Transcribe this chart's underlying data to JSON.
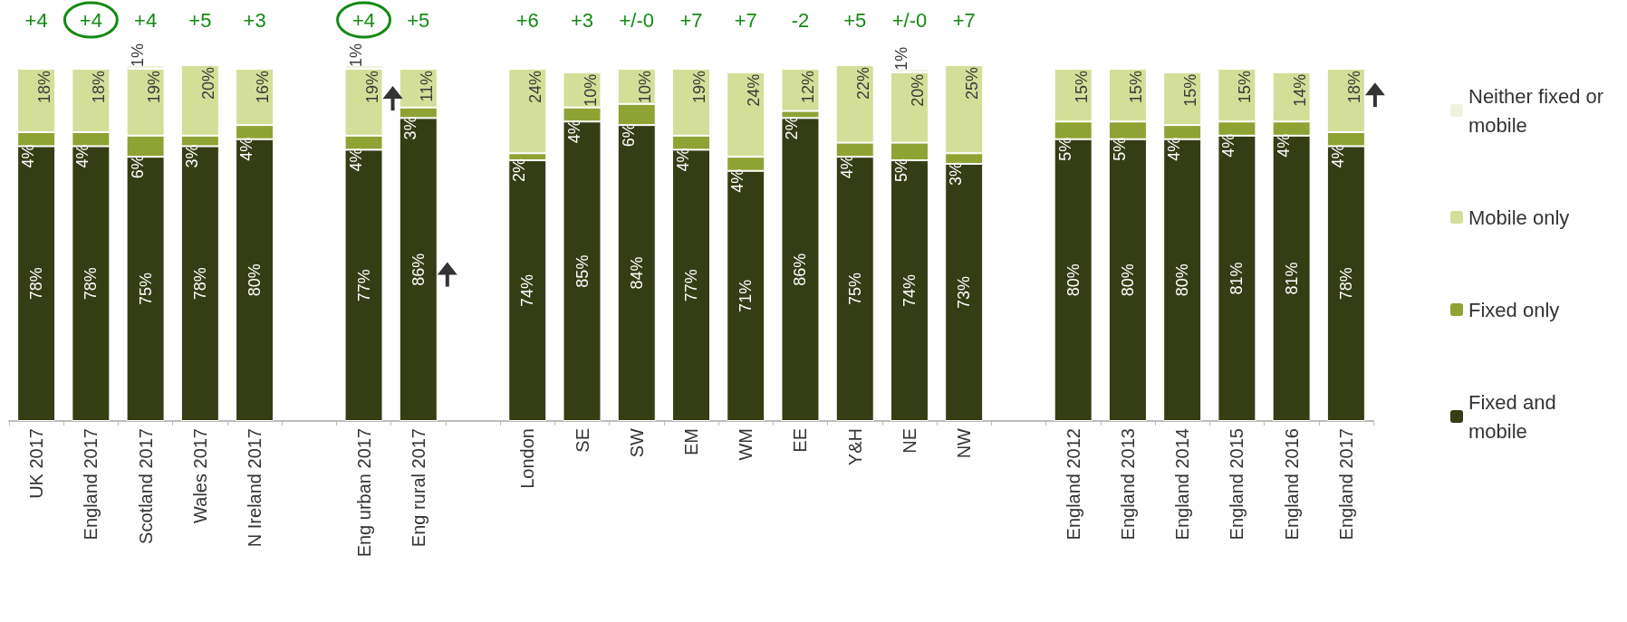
{
  "chart_data": {
    "type": "bar",
    "stacked": true,
    "data_labels": true,
    "legend": "right",
    "categories": [
      "UK 2017",
      "England 2017",
      "Scotland 2017",
      "Wales 2017",
      "N Ireland 2017",
      null,
      "Eng urban 2017",
      "Eng rural 2017",
      null,
      "London",
      "SE",
      "SW",
      "EM",
      "WM",
      "EE",
      "Y&H",
      "NE",
      "NW",
      null,
      "England 2012",
      "England 2013",
      "England 2014",
      "England 2015",
      "England 2016",
      "England 2017"
    ],
    "series": [
      {
        "name": "Fixed and mobile",
        "color": "#353d14",
        "values": [
          78,
          78,
          75,
          78,
          80,
          null,
          77,
          86,
          null,
          74,
          85,
          84,
          77,
          71,
          86,
          75,
          74,
          73,
          null,
          80,
          80,
          80,
          81,
          81,
          78
        ],
        "value_labels": [
          "78%",
          "78%",
          "75%",
          "78%",
          "80%",
          null,
          "77%",
          "86%",
          null,
          "74%",
          "85%",
          "84%",
          "77%",
          "71%",
          "86%",
          "75%",
          "74%",
          "73%",
          null,
          "80%",
          "80%",
          "80%",
          "81%",
          "81%",
          "78%"
        ]
      },
      {
        "name": "Fixed only",
        "color": "#8ea333",
        "values": [
          4,
          4,
          6,
          3,
          4,
          null,
          4,
          3,
          null,
          2,
          4,
          6,
          4,
          4,
          2,
          4,
          5,
          3,
          null,
          5,
          5,
          4,
          4,
          4,
          4
        ],
        "value_labels": [
          "4%",
          "4%",
          "6%",
          "3%",
          "4%",
          null,
          "4%",
          "3%",
          null,
          "2%",
          "4%",
          "6%",
          "4%",
          "4%",
          "2%",
          "4%",
          "5%",
          "3%",
          null,
          "5%",
          "5%",
          "4%",
          "4%",
          "4%",
          "4%"
        ]
      },
      {
        "name": "Mobile only",
        "color": "#d3df98",
        "values": [
          18,
          18,
          19,
          20,
          16,
          null,
          19,
          11,
          null,
          24,
          10,
          10,
          19,
          24,
          12,
          22,
          20,
          25,
          null,
          15,
          15,
          15,
          15,
          14,
          18
        ],
        "value_labels": [
          "18%",
          "18%",
          "19%",
          "20%",
          "16%",
          null,
          "19%",
          "11%",
          null,
          "24%",
          "10%",
          "10%",
          "19%",
          "24%",
          "12%",
          "22%",
          "20%",
          "25%",
          null,
          "15%",
          "15%",
          "15%",
          "15%",
          "14%",
          "18%"
        ]
      },
      {
        "name": "Neither fixed or mobile",
        "color": "#eef3dd",
        "values": [
          0,
          0,
          1,
          0,
          0,
          null,
          1,
          0,
          null,
          0,
          0,
          0,
          0,
          0,
          0,
          0,
          1,
          0,
          null,
          0,
          0,
          0,
          0,
          0,
          0
        ],
        "value_labels": [
          null,
          null,
          "1%",
          null,
          null,
          null,
          "1%",
          null,
          null,
          null,
          null,
          null,
          null,
          null,
          null,
          null,
          "1%",
          null,
          null,
          null,
          null,
          null,
          null,
          null,
          null
        ]
      }
    ],
    "annotations": [
      "+4",
      "+4",
      "+4",
      "+5",
      "+3",
      "+4",
      "+5",
      "+6",
      "+3",
      "+/-0",
      "+7",
      "+7",
      "-2",
      "+5",
      "+/-0",
      "+7"
    ]
  }
}
